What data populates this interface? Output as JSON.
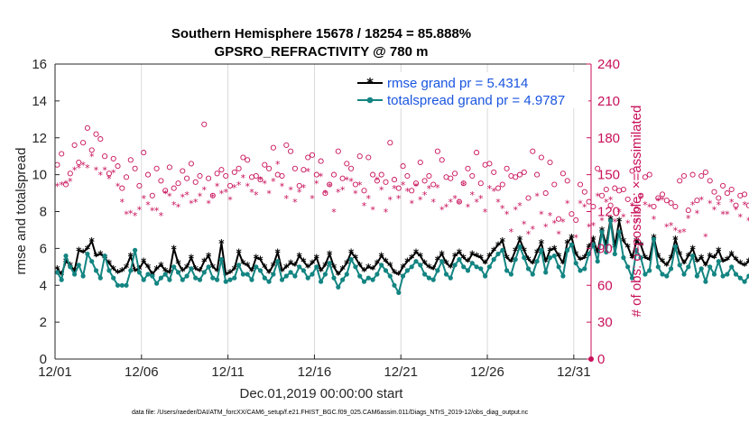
{
  "chart_data": {
    "type": "line",
    "title": "Southern Hemisphere 15678 / 18254 = 85.888%",
    "subtitle": "GPSRO_REFRACTIVITY @ 780 m",
    "xlabel": "Dec.01,2019 00:00:00 start",
    "ylabel": "rmse and totalspread",
    "ylabel_right": "# of obs: o=possible; ×=assimilated",
    "footnote": "data file: /Users/raeder/DAI/ATM_forcXX/CAM6_setup/f.e21.FHIST_BGC.f09_025.CAM6assim.011/Diags_NTrS_2019-12/obs_diag_output.nc",
    "x_ticks": [
      "12/01",
      "12/06",
      "12/11",
      "12/16",
      "12/21",
      "12/26",
      "12/31"
    ],
    "y_ticks": [
      "0",
      "2",
      "4",
      "6",
      "8",
      "10",
      "12",
      "14",
      "16"
    ],
    "y2_ticks": [
      "0",
      "30",
      "60",
      "90",
      "120",
      "150",
      "180",
      "210",
      "240"
    ],
    "ylim": [
      0,
      16
    ],
    "y2lim": [
      0,
      240
    ],
    "xlim_days": [
      0,
      31
    ],
    "grid": "x",
    "legend_placement": "top-right",
    "x_step_days": 0.25,
    "series": [
      {
        "name": "rmse grand pr = 5.4314",
        "color": "#000000",
        "axis": "left",
        "marker": "star",
        "values": [
          4.9,
          4.6,
          5.3,
          5.1,
          4.8,
          5.9,
          5.8,
          6.0,
          6.4,
          5.6,
          5.7,
          5.5,
          5.2,
          4.9,
          4.7,
          4.8,
          5.0,
          5.6,
          4.8,
          4.9,
          5.3,
          5.0,
          4.6,
          4.9,
          5.1,
          4.8,
          4.7,
          6.0,
          5.2,
          4.8,
          5.0,
          5.5,
          4.9,
          4.8,
          5.3,
          5.6,
          5.0,
          4.8,
          6.3,
          4.6,
          4.7,
          4.9,
          5.8,
          5.2,
          5.1,
          4.8,
          5.5,
          5.4,
          5.0,
          4.7,
          5.1,
          5.8,
          4.8,
          5.0,
          5.2,
          5.1,
          5.6,
          5.3,
          5.0,
          5.2,
          5.5,
          4.8,
          5.1,
          5.7,
          5.0,
          4.6,
          4.9,
          5.2,
          5.8,
          5.5,
          5.1,
          4.8,
          5.0,
          4.9,
          5.2,
          5.6,
          5.3,
          5.1,
          4.7,
          4.6,
          5.0,
          5.3,
          5.5,
          5.8,
          5.6,
          5.2,
          5.0,
          4.9,
          5.4,
          5.7,
          5.2,
          5.0,
          5.6,
          5.8,
          5.5,
          5.3,
          5.7,
          5.6,
          5.5,
          5.2,
          5.6,
          5.9,
          6.2,
          6.4,
          5.5,
          5.3,
          5.9,
          6.5,
          5.9,
          5.4,
          5.2,
          5.8,
          6.3,
          5.3,
          5.9,
          6.0,
          5.6,
          5.2,
          6.3,
          6.6,
          5.7,
          5.4,
          5.5,
          6.1,
          6.5,
          5.8,
          7.0,
          6.2,
          7.6,
          6.1,
          7.5,
          6.4,
          6.1,
          5.5,
          6.4,
          6.2,
          5.5,
          5.4,
          6.6,
          5.6,
          5.3,
          5.1,
          5.5,
          6.5,
          5.7,
          5.2,
          5.6,
          6.0,
          5.3,
          5.5,
          5.1,
          5.6,
          5.5,
          5.9,
          5.3,
          5.4,
          5.7,
          5.4,
          5.2,
          5.1,
          5.3,
          5.5,
          5.4,
          5.5
        ]
      },
      {
        "name": "totalspread grand pr = 4.9787",
        "color": "#138582",
        "axis": "left",
        "marker": "dot",
        "values": [
          4.7,
          4.3,
          5.6,
          5.0,
          4.6,
          5.1,
          4.5,
          5.7,
          5.3,
          4.8,
          4.4,
          5.6,
          4.8,
          4.4,
          4.0,
          4.0,
          4.0,
          4.8,
          5.9,
          4.7,
          4.3,
          4.6,
          4.5,
          4.1,
          4.4,
          4.6,
          4.3,
          5.0,
          4.7,
          4.3,
          4.5,
          4.9,
          4.4,
          4.3,
          4.7,
          5.0,
          4.4,
          4.3,
          5.4,
          4.2,
          4.3,
          4.4,
          5.1,
          4.6,
          4.6,
          4.3,
          5.0,
          4.8,
          4.4,
          4.2,
          4.6,
          5.3,
          4.3,
          4.5,
          4.7,
          4.5,
          5.0,
          4.8,
          4.4,
          4.6,
          5.0,
          4.2,
          4.6,
          5.2,
          4.4,
          3.9,
          4.3,
          4.6,
          5.4,
          5.0,
          4.5,
          4.2,
          4.4,
          4.3,
          4.6,
          5.1,
          4.8,
          4.5,
          4.0,
          3.6,
          4.5,
          4.8,
          5.0,
          5.3,
          5.1,
          4.6,
          4.4,
          4.3,
          4.8,
          5.3,
          4.6,
          4.4,
          5.1,
          5.4,
          5.0,
          4.8,
          5.2,
          5.0,
          4.9,
          4.5,
          5.0,
          5.4,
          5.7,
          5.9,
          4.8,
          4.6,
          5.4,
          6.1,
          5.5,
          4.9,
          4.6,
          5.3,
          5.9,
          4.7,
          5.5,
          5.6,
          5.0,
          4.5,
          5.9,
          6.2,
          5.2,
          4.8,
          4.9,
          5.7,
          6.2,
          5.3,
          6.9,
          5.8,
          7.5,
          5.7,
          6.9,
          5.5,
          5.0,
          4.4,
          5.9,
          5.5,
          4.6,
          4.8,
          6.5,
          5.0,
          4.6,
          4.5,
          4.9,
          6.1,
          5.1,
          4.6,
          5.0,
          5.6,
          4.5,
          4.9,
          4.2,
          5.0,
          4.6,
          5.3,
          4.5,
          4.6,
          5.0,
          4.6,
          4.4,
          4.2,
          4.5,
          4.8,
          4.6,
          4.7
        ]
      },
      {
        "name": "possible obs",
        "color": "#c8105a",
        "axis": "right",
        "marker": "circle",
        "values": [
          158,
          167,
          142,
          151,
          174,
          160,
          176,
          188,
          170,
          183,
          179,
          165,
          151,
          163,
          157,
          139,
          148,
          162,
          155,
          141,
          168,
          150,
          133,
          155,
          145,
          137,
          156,
          139,
          143,
          153,
          147,
          159,
          144,
          149,
          191,
          147,
          133,
          151,
          154,
          149,
          141,
          152,
          155,
          164,
          162,
          148,
          149,
          146,
          158,
          155,
          172,
          150,
          149,
          174,
          169,
          155,
          141,
          154,
          164,
          166,
          150,
          161,
          135,
          142,
          150,
          169,
          147,
          159,
          155,
          142,
          165,
          137,
          164,
          150,
          145,
          150,
          144,
          176,
          146,
          139,
          157,
          149,
          137,
          143,
          160,
          145,
          149,
          142,
          169,
          162,
          148,
          147,
          151,
          128,
          143,
          155,
          149,
          168,
          143,
          158,
          159,
          152,
          139,
          142,
          155,
          149,
          148,
          150,
          152,
          131,
          169,
          150,
          164,
          135,
          160,
          142,
          114,
          151,
          145,
          118,
          113,
          142,
          136,
          128,
          124,
          155,
          133,
          138,
          125,
          139,
          137,
          138,
          130,
          153,
          122,
          133,
          148,
          150,
          124,
          131,
          134,
          129,
          127,
          124,
          145,
          149,
          121,
          150,
          129,
          149,
          152,
          145,
          136,
          131,
          141,
          135,
          138,
          125,
          133,
          134,
          125,
          127,
          139,
          134,
          131,
          135,
          155,
          126,
          126,
          129,
          144,
          152,
          137,
          149
        ]
      },
      {
        "name": "assimilated obs",
        "color": "#c8105a",
        "axis": "right",
        "marker": "star",
        "values": [
          141,
          142,
          143,
          145,
          154,
          156,
          158,
          156,
          165,
          154,
          150,
          154,
          147,
          152,
          141,
          128,
          118,
          119,
          117,
          122,
          131,
          126,
          121,
          121,
          117,
          135,
          133,
          126,
          124,
          132,
          134,
          127,
          128,
          133,
          138,
          127,
          132,
          141,
          135,
          136,
          130,
          140,
          142,
          148,
          141,
          136,
          134,
          146,
          143,
          135,
          145,
          159,
          141,
          131,
          138,
          128,
          136,
          140,
          153,
          131,
          143,
          149,
          135,
          141,
          120,
          136,
          138,
          146,
          145,
          135,
          142,
          125,
          131,
          122,
          146,
          138,
          120,
          130,
          139,
          131,
          142,
          137,
          127,
          141,
          130,
          134,
          139,
          128,
          140,
          122,
          124,
          128,
          131,
          127,
          142,
          124,
          134,
          128,
          131,
          120,
          139,
          137,
          128,
          123,
          118,
          104,
          122,
          125,
          110,
          102,
          106,
          133,
          118,
          108,
          117,
          111,
          102,
          112,
          127,
          99,
          99,
          127,
          124,
          108,
          109,
          133,
          113,
          128,
          130,
          112,
          120,
          116,
          111,
          125,
          112,
          131,
          126,
          124,
          114,
          129,
          130,
          108,
          109,
          105,
          103,
          104,
          115,
          126,
          119,
          130,
          100,
          127,
          122,
          126,
          118,
          118,
          128,
          122,
          116,
          126,
          113,
          121,
          119,
          117,
          126,
          117,
          125,
          124,
          130,
          116,
          116,
          117,
          127,
          135
        ]
      }
    ]
  }
}
